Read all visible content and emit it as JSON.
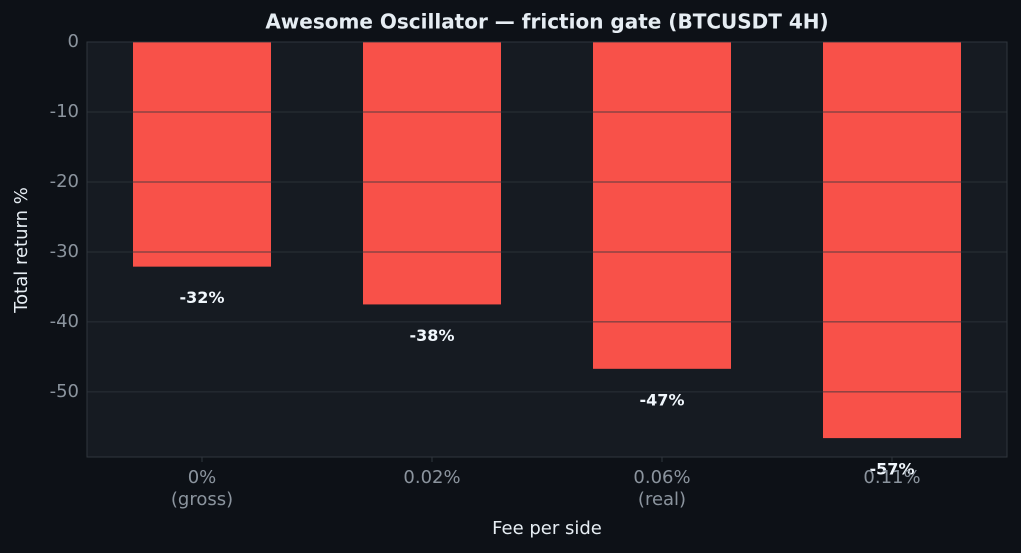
{
  "chart_data": {
    "type": "bar",
    "title": "Awesome Oscillator — friction gate (BTCUSDT 4H)",
    "x_label": "Fee per side",
    "y_label": "Total return %",
    "categories": [
      "0%\n(gross)",
      "0.02%",
      "0.06%\n(real)",
      "0.11%"
    ],
    "values": [
      -32.1,
      -37.5,
      -46.7,
      -56.6
    ],
    "value_labels": [
      "-32%",
      "-38%",
      "-47%",
      "-57%"
    ],
    "color": "#f85149",
    "ylim": [
      -59.3,
      0
    ],
    "yticks": [
      -50,
      -40,
      -30,
      -20,
      -10,
      0
    ],
    "grid": true
  }
}
